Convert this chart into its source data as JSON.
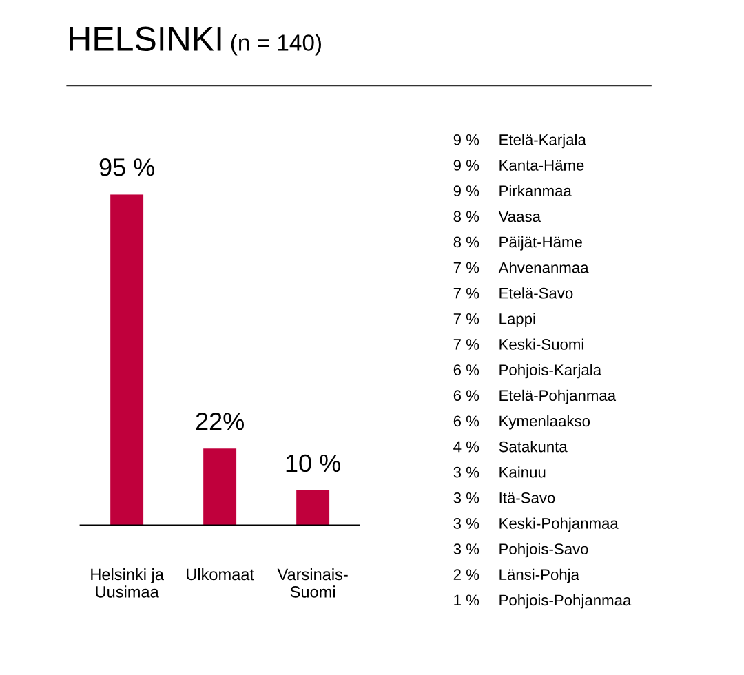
{
  "chart_data": [
    {
      "type": "bar",
      "title": "HELSINKI",
      "subtitle": "(n = 140)",
      "categories": [
        "Helsinki ja\nUusimaa",
        "Ulkomaat",
        "Varsinais-\nSuomi"
      ],
      "values": [
        95,
        22,
        10
      ],
      "value_labels": [
        "95 %",
        "22%",
        "10 %"
      ],
      "color": "#c0003c",
      "tick_labels": "x",
      "grid": false,
      "legend": false
    },
    {
      "type": "other",
      "categories": [
        "Etelä-Karjala",
        "Kanta-Häme",
        "Pirkanmaa",
        "Vaasa",
        "Päijät-Häme",
        "Ahvenanmaa",
        "Etelä-Savo",
        "Lappi",
        "Keski-Suomi",
        "Pohjois-Karjala",
        "Etelä-Pohjanmaa",
        "Kymenlaakso",
        "Satakunta",
        "Kainuu",
        "Itä-Savo",
        "Keski-Pohjanmaa",
        "Pohjois-Savo",
        "Länsi-Pohja",
        "Pohjois-Pohjanmaa"
      ],
      "value_labels": [
        "9 %",
        "9 %",
        "9 %",
        "8 %",
        "8 %",
        "7 %",
        "7 %",
        "7 %",
        "7 %",
        "6 %",
        "6 %",
        "6 %",
        "4 %",
        "3 %",
        "3 %",
        "3 %",
        "3 %",
        "2 %",
        "1 %"
      ]
    }
  ]
}
